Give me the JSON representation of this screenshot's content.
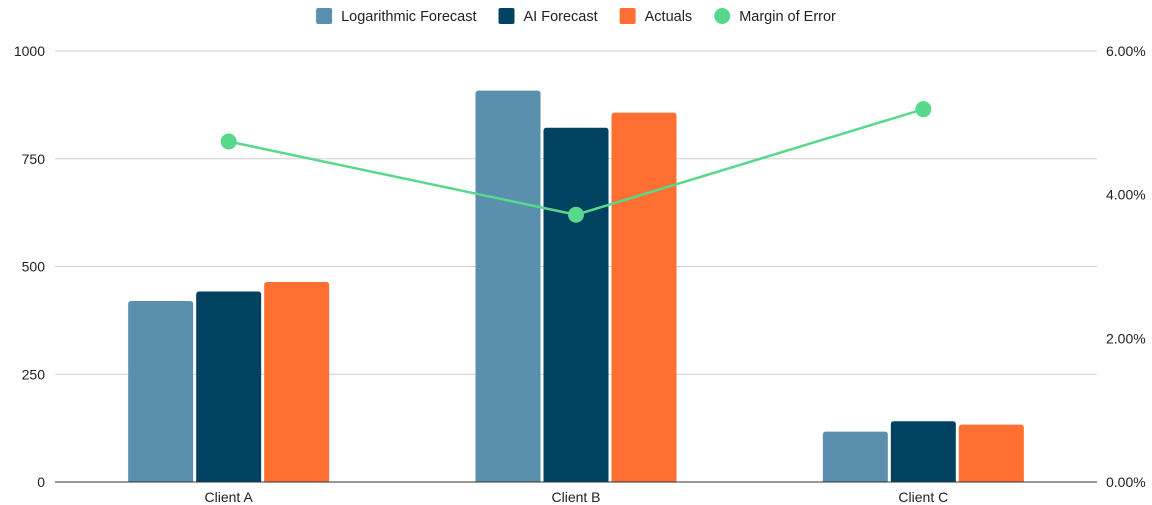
{
  "chart_data": {
    "type": "bar",
    "title": "",
    "xlabel": "",
    "ylabel": "",
    "categories": [
      "Client A",
      "Client B",
      "Client C"
    ],
    "series": [
      {
        "name": "Logarithmic Forecast",
        "type": "bar",
        "axis": "left",
        "color": "#5b8fae",
        "values": [
          420,
          908,
          117
        ]
      },
      {
        "name": "AI Forecast",
        "type": "bar",
        "axis": "left",
        "color": "#00425f",
        "values": [
          442,
          822,
          141
        ]
      },
      {
        "name": "Actuals",
        "type": "bar",
        "axis": "left",
        "color": "#ff6f31",
        "values": [
          464,
          857,
          133
        ]
      },
      {
        "name": "Margin of Error",
        "type": "line",
        "axis": "right",
        "color": "#57d88a",
        "values": [
          4.74,
          3.72,
          5.19
        ]
      }
    ],
    "ylim": [
      0,
      1000
    ],
    "y2lim": [
      0,
      6
    ],
    "yticks": [
      0,
      250,
      500,
      750,
      1000
    ],
    "ytick_labels": [
      "0",
      "250",
      "500",
      "750",
      "1000"
    ],
    "y2ticks": [
      0,
      2,
      4,
      6
    ],
    "y2tick_labels": [
      "0.00%",
      "2.00%",
      "4.00%",
      "6.00%"
    ],
    "legend_position": "top-center",
    "grid": true
  }
}
